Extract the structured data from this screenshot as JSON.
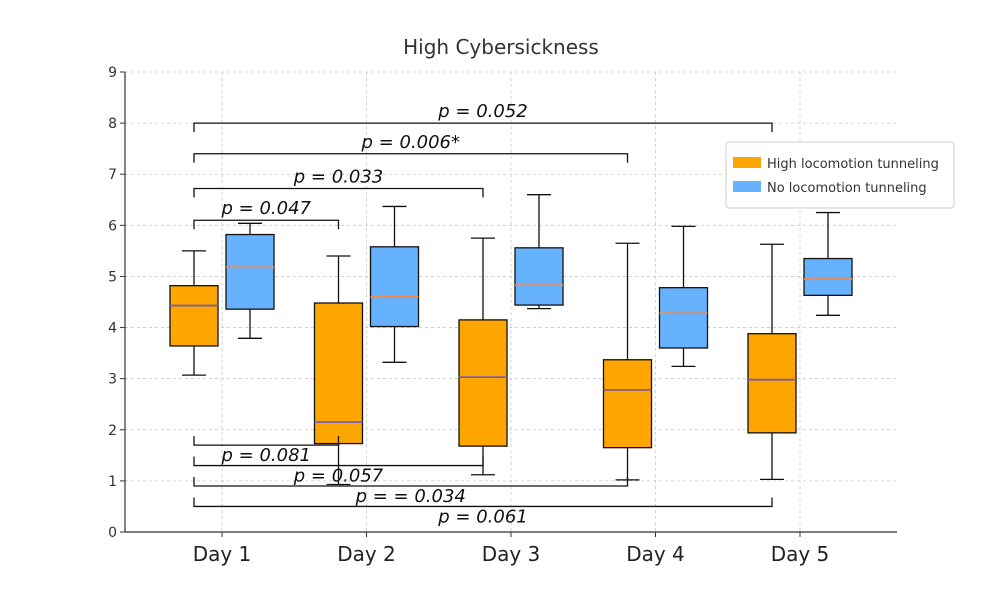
{
  "chart_data": {
    "type": "boxplot",
    "title": "High Cybersickness",
    "xlabel": "",
    "ylabel": "",
    "ylim": [
      0,
      9
    ],
    "yticks": [
      0,
      1,
      2,
      3,
      4,
      5,
      6,
      7,
      8,
      9
    ],
    "grid": true,
    "categories": [
      "Day 1",
      "Day 2",
      "Day 3",
      "Day 4",
      "Day 5"
    ],
    "series": [
      {
        "name": "High locomotion tunneling",
        "color": "#ffa500",
        "median_color": "#7b5ea7",
        "boxes": [
          {
            "min": 3.07,
            "q1": 3.64,
            "median": 4.43,
            "q3": 4.82,
            "max": 5.5
          },
          {
            "min": 0.93,
            "q1": 1.73,
            "median": 2.15,
            "q3": 4.48,
            "max": 5.4
          },
          {
            "min": 1.12,
            "q1": 1.68,
            "median": 3.03,
            "q3": 4.15,
            "max": 5.75
          },
          {
            "min": 1.02,
            "q1": 1.65,
            "median": 2.78,
            "q3": 3.37,
            "max": 5.65
          },
          {
            "min": 1.03,
            "q1": 1.94,
            "median": 2.98,
            "q3": 3.88,
            "max": 5.63
          }
        ]
      },
      {
        "name": "No locomotion tunneling",
        "color": "#66b2ff",
        "median_color": "#f08a4b",
        "boxes": [
          {
            "min": 3.79,
            "q1": 4.36,
            "median": 5.18,
            "q3": 5.82,
            "max": 6.04
          },
          {
            "min": 3.32,
            "q1": 4.02,
            "median": 4.6,
            "q3": 5.58,
            "max": 6.37
          },
          {
            "min": 4.37,
            "q1": 4.44,
            "median": 4.83,
            "q3": 5.56,
            "max": 6.6
          },
          {
            "min": 3.24,
            "q1": 3.6,
            "median": 4.28,
            "q3": 4.78,
            "max": 5.98
          },
          {
            "min": 4.24,
            "q1": 4.63,
            "median": 4.95,
            "q3": 5.35,
            "max": 6.25
          }
        ]
      }
    ],
    "annotations": [
      {
        "text": "p = 0.052",
        "from": 0,
        "to": 4,
        "group": "upper",
        "y": 8.0
      },
      {
        "text": "p = 0.006*",
        "from": 0,
        "to": 3,
        "group": "upper",
        "y": 7.4
      },
      {
        "text": "p = 0.033",
        "from": 0,
        "to": 2,
        "group": "upper",
        "y": 6.72
      },
      {
        "text": "p = 0.047",
        "from": 0,
        "to": 1,
        "group": "upper",
        "y": 6.1
      },
      {
        "text": "p = 0.081",
        "from": 0,
        "to": 1,
        "group": "lower",
        "y": 1.7
      },
      {
        "text": "p = 0.057",
        "from": 0,
        "to": 2,
        "group": "lower",
        "y": 1.3
      },
      {
        "text": "p = = 0.034",
        "from": 0,
        "to": 3,
        "group": "lower",
        "y": 0.9
      },
      {
        "text": "p = 0.061",
        "from": 0,
        "to": 4,
        "group": "lower",
        "y": 0.5
      }
    ],
    "legend": {
      "position": "upper-right",
      "entries": [
        "High locomotion tunneling",
        "No locomotion tunneling"
      ]
    }
  }
}
